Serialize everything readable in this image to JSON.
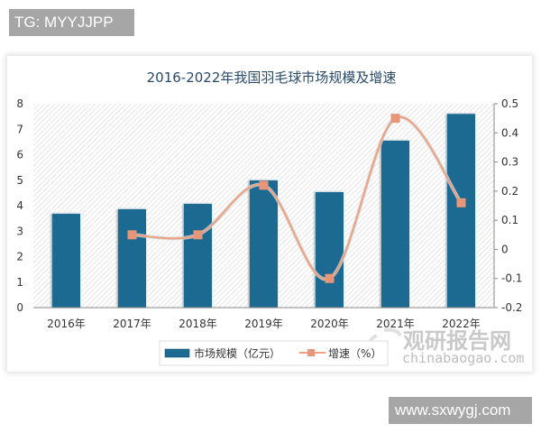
{
  "overlay": {
    "top_tag": "TG: MYYJJPP",
    "bottom_tag": "www.sxwygj.com"
  },
  "watermark": {
    "cn": "观研报告网",
    "en": "chinabaogao.com"
  },
  "colors": {
    "bar": "#1c6a92",
    "line": "#f0a07c",
    "marker": "#e8967a",
    "title": "#2a4a6a"
  },
  "chart_data": {
    "type": "bar",
    "title": "2016-2022年我国羽毛球市场规模及增速",
    "categories": [
      "2016年",
      "2017年",
      "2018年",
      "2019年",
      "2020年",
      "2021年",
      "2022年"
    ],
    "series": [
      {
        "name": "市场规模（亿元）",
        "type": "bar",
        "axis": "left",
        "values": [
          3.68,
          3.86,
          4.07,
          4.99,
          4.53,
          6.55,
          7.6
        ]
      },
      {
        "name": "增速（%）",
        "type": "line",
        "axis": "right",
        "values": [
          null,
          0.05,
          0.05,
          0.22,
          -0.1,
          0.45,
          0.16
        ]
      }
    ],
    "left_axis": {
      "ylim": [
        0,
        8
      ],
      "ticks": [
        "0",
        "1",
        "2",
        "3",
        "4",
        "5",
        "6",
        "7",
        "8"
      ]
    },
    "right_axis": {
      "ylim": [
        -0.2,
        0.5
      ],
      "ticks": [
        "-0.2",
        "-0.1",
        "0",
        "0.1",
        "0.2",
        "0.3",
        "0.4",
        "0.5"
      ]
    },
    "xlabel": "",
    "ylabel": "",
    "legend_position": "bottom",
    "grid": false
  }
}
